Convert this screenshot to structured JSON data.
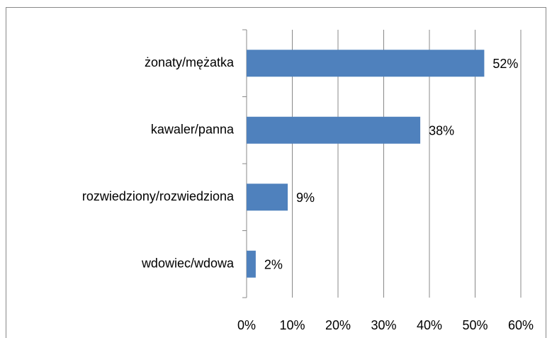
{
  "chart_data": {
    "type": "bar",
    "orientation": "horizontal",
    "categories": [
      "żonaty/mężatka",
      "kawaler/panna",
      "rozwiedziony/rozwiedziona",
      "wdowiec/wdowa"
    ],
    "values": [
      52,
      38,
      9,
      2
    ],
    "value_labels": [
      "52%",
      "38%",
      "9%",
      "2%"
    ],
    "color": "#4f81bd",
    "xlim": [
      0,
      60
    ],
    "xticks": [
      {
        "value": 0,
        "label": "0%"
      },
      {
        "value": 10,
        "label": "10%"
      },
      {
        "value": 20,
        "label": "20%"
      },
      {
        "value": 30,
        "label": "30%"
      },
      {
        "value": 40,
        "label": "40%"
      },
      {
        "value": 50,
        "label": "50%"
      },
      {
        "value": 60,
        "label": "60%"
      }
    ],
    "grid": true
  }
}
